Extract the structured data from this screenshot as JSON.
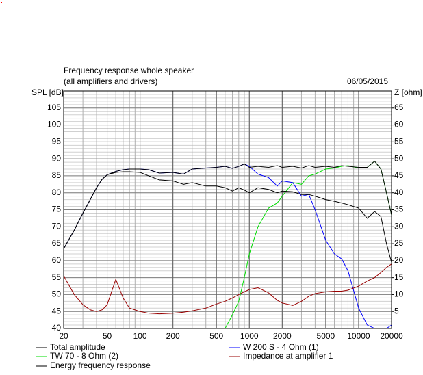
{
  "chart_data": {
    "type": "line",
    "title": "Frequency response whole speaker",
    "subtitle": "(all amplifiers and drivers)",
    "date": "06/05/2015",
    "ylabel": "SPL [dB]",
    "y2label": "Z [ohm]",
    "log_x": true,
    "grid": true,
    "x": [
      20,
      25,
      30,
      35,
      40,
      45,
      50,
      60,
      70,
      80,
      100,
      120,
      150,
      200,
      250,
      300,
      400,
      500,
      600,
      700,
      800,
      900,
      1000,
      1200,
      1500,
      1800,
      2000,
      2500,
      3000,
      3500,
      4000,
      5000,
      6000,
      7000,
      8000,
      10000,
      12000,
      14000,
      16000,
      18000,
      20000
    ],
    "xlim": [
      20,
      20000
    ],
    "xticks": [
      20,
      50,
      100,
      200,
      500,
      1000,
      2000,
      5000,
      10000,
      20000
    ],
    "ylim": [
      40,
      110
    ],
    "yticks": [
      40,
      45,
      50,
      55,
      60,
      65,
      70,
      75,
      80,
      85,
      90,
      95,
      100,
      105
    ],
    "y2lim": [
      0,
      70
    ],
    "y2ticks": [
      5,
      10,
      15,
      20,
      25,
      30,
      35,
      40,
      45,
      50,
      55,
      60,
      65
    ],
    "series": [
      {
        "name": "Total amplitude",
        "color": "#000000",
        "values": [
          63.5,
          69,
          74,
          78,
          81.5,
          84,
          85.3,
          86.3,
          86.8,
          87,
          87,
          86.8,
          85.8,
          86,
          85.5,
          87,
          87.3,
          87.5,
          87.8,
          87.2,
          87.8,
          88.5,
          87.5,
          87.8,
          87.5,
          88,
          87.5,
          87.8,
          87.3,
          88,
          87.5,
          87.8,
          87.5,
          88,
          87.8,
          87.5,
          87.5,
          89.3,
          87,
          80,
          73.5
        ]
      },
      {
        "name": "W 200 S - 4 Ohm (1)",
        "color": "#0000ff",
        "values": [
          63.5,
          69,
          74,
          78,
          81.5,
          84,
          85.3,
          86.3,
          86.8,
          87,
          87,
          86.8,
          85.8,
          86,
          85.5,
          87,
          87.3,
          87.5,
          87.8,
          87.2,
          87.8,
          88.5,
          87.8,
          85.5,
          84.5,
          82,
          83.5,
          83,
          79,
          79.5,
          75,
          66,
          62,
          60.5,
          57,
          46,
          41,
          40,
          40,
          40,
          41
        ]
      },
      {
        "name": "TW 70 - 8 Ohm (2)",
        "color": "#00dd00",
        "values": [
          40,
          40,
          40,
          40,
          40,
          40,
          40,
          40,
          40,
          40,
          40,
          40,
          40,
          40,
          40,
          40,
          40,
          40,
          40,
          44,
          48,
          55,
          62,
          70,
          75.5,
          77,
          79,
          83,
          82.5,
          85,
          85.5,
          87,
          87.3,
          87.8,
          88,
          87.3,
          87.5,
          89.3,
          87,
          80,
          73.5
        ]
      },
      {
        "name": "Impedance at amplifier 1",
        "color": "#990000",
        "axis": "y2",
        "values": [
          15.5,
          10,
          7,
          5.5,
          5,
          5.5,
          7,
          14.5,
          9,
          6,
          5,
          4.5,
          4.3,
          4.5,
          4.8,
          5.2,
          6,
          7.2,
          8,
          9,
          10,
          10.8,
          11.5,
          12,
          10.5,
          8.3,
          7.5,
          6.8,
          8,
          9.5,
          10.3,
          10.8,
          11,
          11,
          11.3,
          12.5,
          14,
          15,
          16.5,
          18,
          19
        ]
      },
      {
        "name": "Energy frequency response",
        "color": "#000000",
        "values": [
          63.5,
          69,
          74,
          78,
          81.5,
          84,
          85.3,
          86,
          86.2,
          86.2,
          86,
          85,
          83.8,
          83.5,
          82.5,
          83,
          82,
          82,
          81.5,
          80.5,
          81.5,
          80.8,
          80,
          81.5,
          81,
          80,
          80.5,
          80.3,
          79.5,
          79.5,
          79,
          78,
          77.5,
          77,
          76.5,
          75.5,
          72.5,
          74.5,
          73,
          65,
          59.5
        ]
      }
    ]
  }
}
